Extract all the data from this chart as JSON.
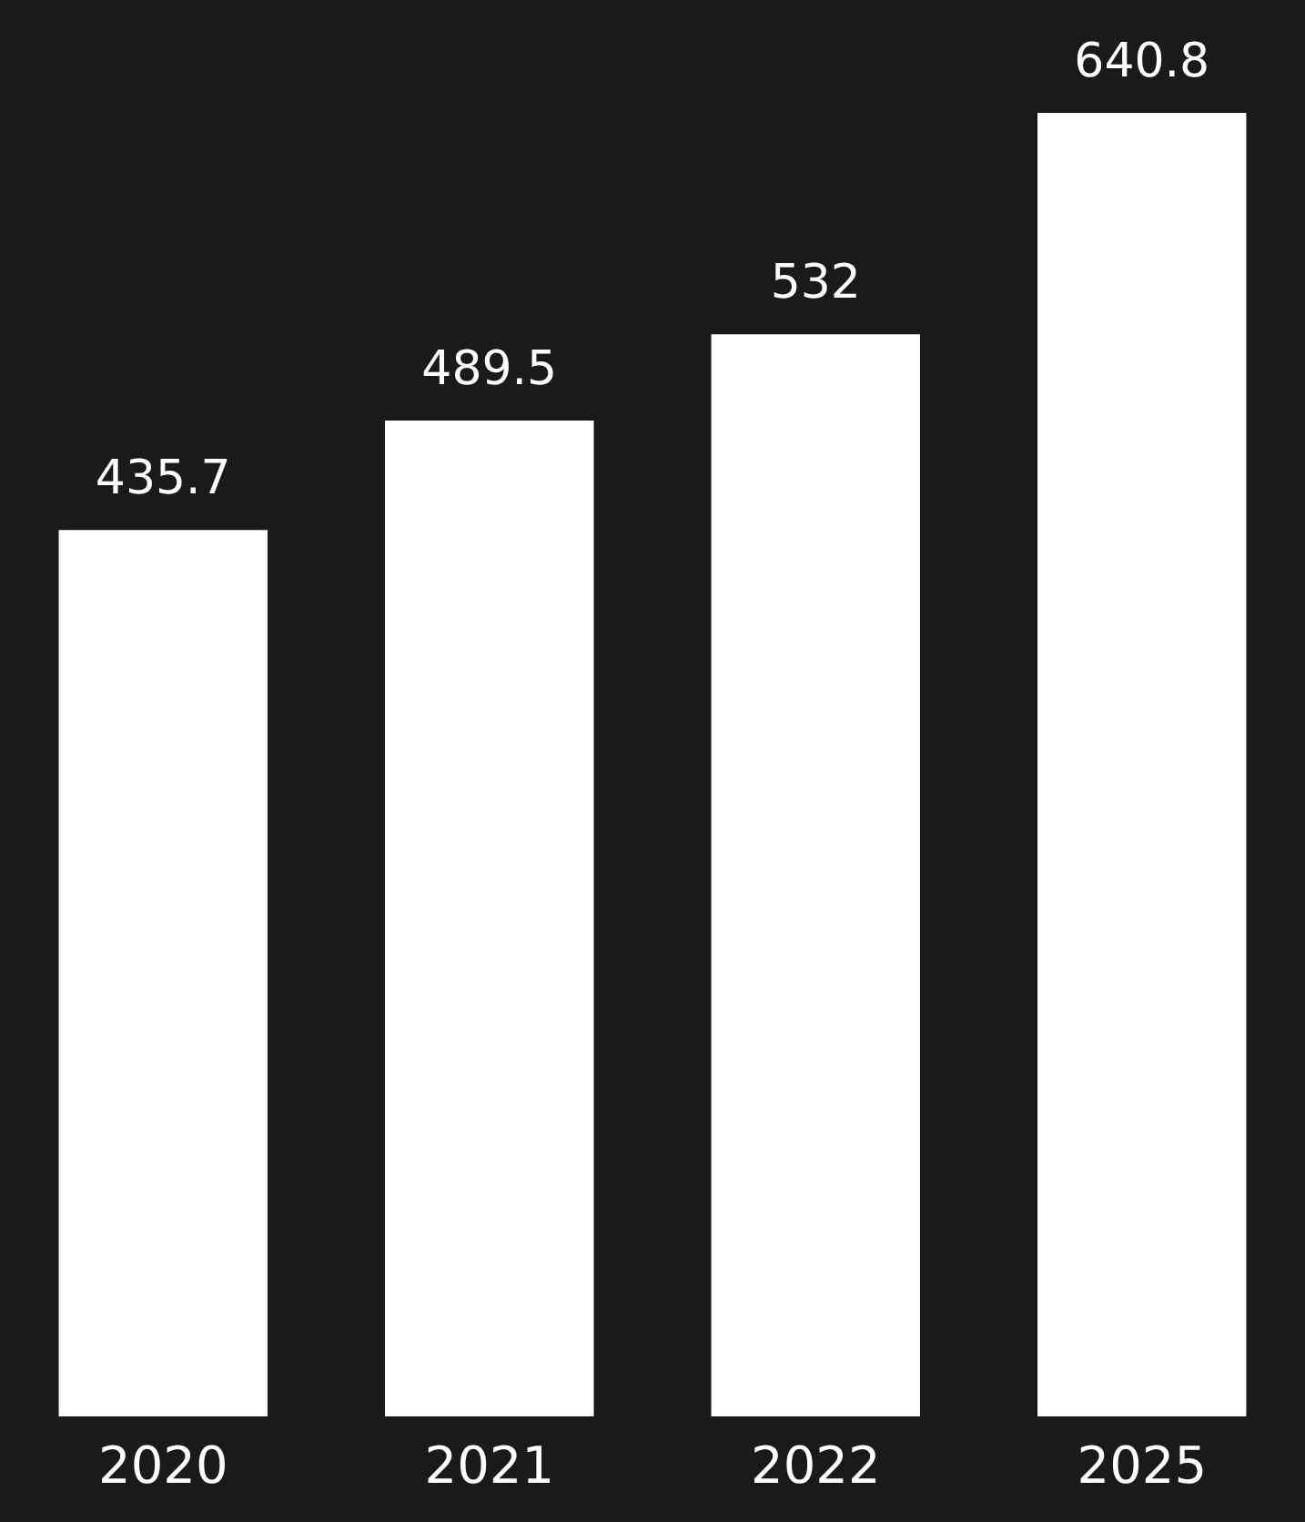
{
  "chart_data": {
    "type": "bar",
    "categories": [
      "2020",
      "2021",
      "2022",
      "2025"
    ],
    "values": [
      435.7,
      489.5,
      532,
      640.8
    ],
    "color": "#ffffff",
    "data_labels": true
  }
}
